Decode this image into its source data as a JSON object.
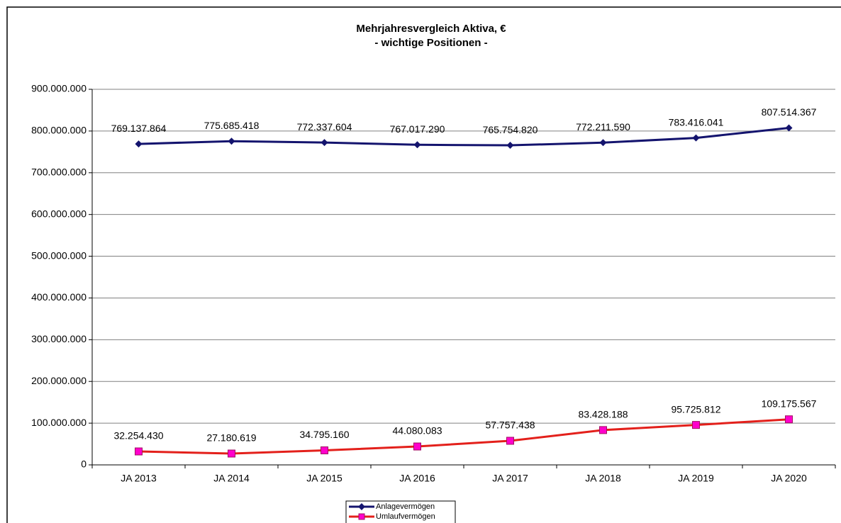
{
  "chart_data": {
    "type": "line",
    "title": "Mehrjahresvergleich Aktiva, €",
    "subtitle": "- wichtige Positionen -",
    "categories": [
      "JA 2013",
      "JA 2014",
      "JA 2015",
      "JA 2016",
      "JA 2017",
      "JA 2018",
      "JA 2019",
      "JA 2020"
    ],
    "series": [
      {
        "name": "Anlagevermögen",
        "color": "#14146e",
        "marker": "diamond",
        "marker_color": "#14146e",
        "values": [
          769137864,
          775685418,
          772337604,
          767017290,
          765754820,
          772211590,
          783416041,
          807514367
        ],
        "value_labels": [
          "769.137.864",
          "775.685.418",
          "772.337.604",
          "767.017.290",
          "765.754.820",
          "772.211.590",
          "783.416.041",
          "807.514.367"
        ]
      },
      {
        "name": "Umlaufvermögen",
        "color": "#e3201b",
        "marker": "square",
        "marker_color": "#ff00cc",
        "values": [
          32254430,
          27180619,
          34795160,
          44080083,
          57757438,
          83428188,
          95725812,
          109175567
        ],
        "value_labels": [
          "32.254.430",
          "27.180.619",
          "34.795.160",
          "44.080.083",
          "57.757.438",
          "83.428.188",
          "95.725.812",
          "109.175.567"
        ]
      }
    ],
    "ylim": [
      0,
      900000000
    ],
    "yticks": [
      {
        "value": 0,
        "label": "0"
      },
      {
        "value": 100000000,
        "label": "100.000.000"
      },
      {
        "value": 200000000,
        "label": "200.000.000"
      },
      {
        "value": 300000000,
        "label": "300.000.000"
      },
      {
        "value": 400000000,
        "label": "400.000.000"
      },
      {
        "value": 500000000,
        "label": "500.000.000"
      },
      {
        "value": 600000000,
        "label": "600.000.000"
      },
      {
        "value": 700000000,
        "label": "700.000.000"
      },
      {
        "value": 800000000,
        "label": "800.000.000"
      },
      {
        "value": 900000000,
        "label": "900.000.000"
      }
    ],
    "grid": true,
    "legend": "bottom"
  }
}
